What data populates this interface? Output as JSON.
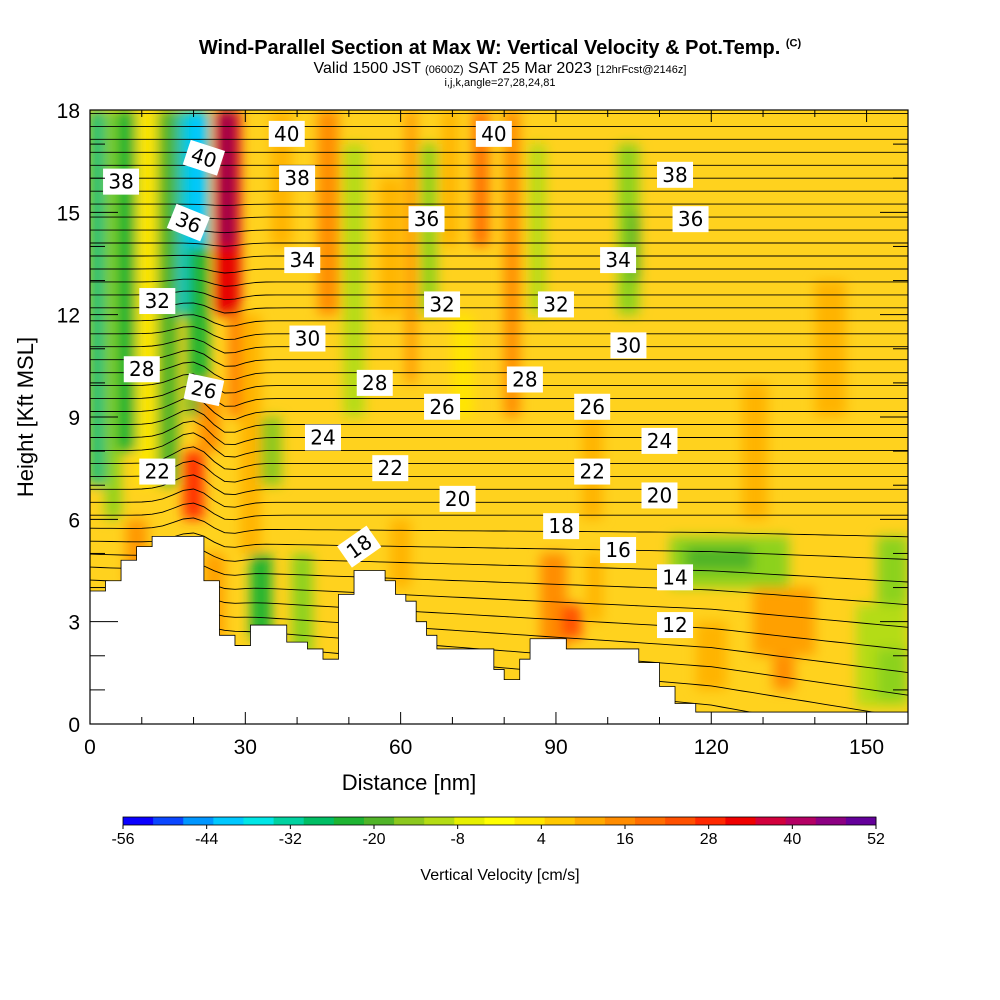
{
  "header": {
    "title": "Wind-Parallel Section at Max W: Vertical Velocity & Pot.Temp.",
    "title_tag": "(C)",
    "subtitle_main": "Valid 1500 JST",
    "subtitle_zulu": "(0600Z)",
    "subtitle_date": "SAT 25 Mar 2023",
    "subtitle_fcst": "[12hrFcst@2146z]",
    "subtitle2": "i,j,k,angle=27,28,24,81"
  },
  "chart_data": {
    "type": "heatmap",
    "xlabel": "Distance [nm]",
    "ylabel": "Height [Kft MSL]",
    "xlim": [
      0,
      158
    ],
    "ylim": [
      0,
      18
    ],
    "x_ticks": [
      "0",
      "30",
      "60",
      "90",
      "120",
      "150"
    ],
    "y_ticks": [
      "0",
      "3",
      "6",
      "9",
      "12",
      "15",
      "18"
    ],
    "colorbar": {
      "title": "Vertical Velocity [cm/s]",
      "tick_labels": [
        "-56",
        "-44",
        "-32",
        "-20",
        "-8",
        "4",
        "16",
        "28",
        "40",
        "52"
      ],
      "colors": [
        "#0a00ff",
        "#0a46ff",
        "#0096ff",
        "#00c8ff",
        "#00e6e6",
        "#00d2a0",
        "#00be64",
        "#1eb432",
        "#50b428",
        "#8cc81e",
        "#b4dc14",
        "#e6f000",
        "#ffff00",
        "#ffe600",
        "#ffc800",
        "#ffaa00",
        "#ff8c00",
        "#ff6e00",
        "#ff5000",
        "#ff2800",
        "#f00000",
        "#d2003c",
        "#b40064",
        "#8c0082",
        "#64009a"
      ]
    },
    "theta_labels": [
      {
        "text": "40",
        "x": 38,
        "y": 17.3,
        "angle": 0
      },
      {
        "text": "40",
        "x": 78,
        "y": 17.3,
        "angle": 0
      },
      {
        "text": "40",
        "x": 22,
        "y": 16.6,
        "angle": 18
      },
      {
        "text": "38",
        "x": 6,
        "y": 15.9,
        "angle": 0
      },
      {
        "text": "38",
        "x": 40,
        "y": 16.0,
        "angle": 0
      },
      {
        "text": "38",
        "x": 113,
        "y": 16.1,
        "angle": 0
      },
      {
        "text": "36",
        "x": 19,
        "y": 14.7,
        "angle": 22
      },
      {
        "text": "36",
        "x": 65,
        "y": 14.8,
        "angle": 0
      },
      {
        "text": "36",
        "x": 116,
        "y": 14.8,
        "angle": 0
      },
      {
        "text": "34",
        "x": 41,
        "y": 13.6,
        "angle": 0
      },
      {
        "text": "34",
        "x": 102,
        "y": 13.6,
        "angle": 0
      },
      {
        "text": "32",
        "x": 13,
        "y": 12.4,
        "angle": 0
      },
      {
        "text": "32",
        "x": 68,
        "y": 12.3,
        "angle": 0
      },
      {
        "text": "32",
        "x": 90,
        "y": 12.3,
        "angle": 0
      },
      {
        "text": "30",
        "x": 42,
        "y": 11.3,
        "angle": 0
      },
      {
        "text": "30",
        "x": 104,
        "y": 11.1,
        "angle": 0
      },
      {
        "text": "28",
        "x": 10,
        "y": 10.4,
        "angle": 0
      },
      {
        "text": "28",
        "x": 55,
        "y": 10.0,
        "angle": 0
      },
      {
        "text": "28",
        "x": 84,
        "y": 10.1,
        "angle": 0
      },
      {
        "text": "26",
        "x": 22,
        "y": 9.8,
        "angle": 12
      },
      {
        "text": "26",
        "x": 68,
        "y": 9.3,
        "angle": 0
      },
      {
        "text": "26",
        "x": 97,
        "y": 9.3,
        "angle": 0
      },
      {
        "text": "24",
        "x": 45,
        "y": 8.4,
        "angle": 0
      },
      {
        "text": "24",
        "x": 110,
        "y": 8.3,
        "angle": 0
      },
      {
        "text": "22",
        "x": 13,
        "y": 7.4,
        "angle": 0
      },
      {
        "text": "22",
        "x": 58,
        "y": 7.5,
        "angle": 0
      },
      {
        "text": "22",
        "x": 97,
        "y": 7.4,
        "angle": 0
      },
      {
        "text": "20",
        "x": 71,
        "y": 6.6,
        "angle": 0
      },
      {
        "text": "20",
        "x": 110,
        "y": 6.7,
        "angle": 0
      },
      {
        "text": "18",
        "x": 52,
        "y": 5.2,
        "angle": -35
      },
      {
        "text": "18",
        "x": 91,
        "y": 5.8,
        "angle": 0
      },
      {
        "text": "16",
        "x": 102,
        "y": 5.1,
        "angle": 0
      },
      {
        "text": "14",
        "x": 113,
        "y": 4.3,
        "angle": 0
      },
      {
        "text": "12",
        "x": 113,
        "y": 2.9,
        "angle": 0
      }
    ]
  }
}
